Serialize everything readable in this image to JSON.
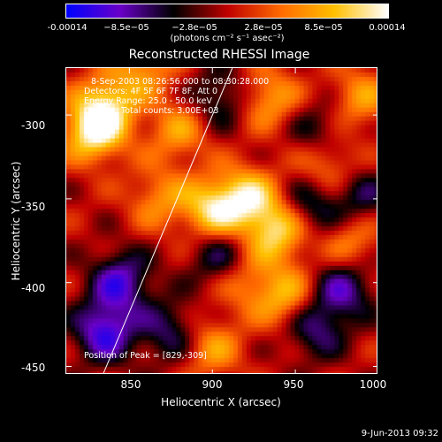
{
  "chart_data": {
    "type": "heatmap",
    "title": "Reconstructed RHESSI Image",
    "xlabel": "Heliocentric X (arcsec)",
    "ylabel": "Heliocentric Y (arcsec)",
    "xlim": [
      812,
      1000
    ],
    "ylim": [
      -455,
      -272
    ],
    "x_ticks": [
      "850",
      "900",
      "950",
      "1000"
    ],
    "y_ticks": [
      "-300",
      "-350",
      "-400",
      "-450"
    ],
    "colorbar": {
      "min": -0.00014,
      "max": 0.00014,
      "tick_labels": [
        "-0.00014",
        "−8.5e−05",
        "−2.8e−05",
        "2.8e−05",
        "8.5e−05",
        "0.00014"
      ],
      "unit": "(photons cm⁻² s⁻¹ asec⁻²)",
      "colormap": [
        "#0000ff",
        "#6a00c8",
        "#000000",
        "#c00000",
        "#ff6a00",
        "#ffc000",
        "#ffffff"
      ]
    },
    "info_lines": [
      "8-Sep-2003 08:26:56.000 to 08:30:28.000",
      "Detectors: 4F 5F 6F 7F 8F, Att 0",
      "Energy Range: 25.0 - 50.0 keV",
      "Clean     Total counts: 3.00E+03"
    ],
    "peak_label": "Position of Peak = [829,-309]",
    "peak": [
      829,
      -309
    ],
    "limb_line": [
      [
        834,
        -455
      ],
      [
        912,
        -272
      ]
    ],
    "blobs": [
      {
        "x": 829,
        "y": -309,
        "v": 1.0
      },
      {
        "x": 838,
        "y": -292,
        "v": 0.6
      },
      {
        "x": 901,
        "y": -357,
        "v": 0.8
      },
      {
        "x": 922,
        "y": -350,
        "v": 0.75
      },
      {
        "x": 940,
        "y": -370,
        "v": 0.8
      },
      {
        "x": 935,
        "y": -290,
        "v": 0.55
      },
      {
        "x": 880,
        "y": -310,
        "v": 0.5
      },
      {
        "x": 970,
        "y": -330,
        "v": 0.5
      },
      {
        "x": 945,
        "y": -410,
        "v": 0.6
      },
      {
        "x": 990,
        "y": -290,
        "v": 0.5
      },
      {
        "x": 900,
        "y": -440,
        "v": 0.5
      },
      {
        "x": 868,
        "y": -350,
        "v": 0.45
      },
      {
        "x": 985,
        "y": -375,
        "v": 0.45
      },
      {
        "x": 920,
        "y": -400,
        "v": 0.4
      },
      {
        "x": 860,
        "y": -270,
        "v": 0.5
      },
      {
        "x": 845,
        "y": -400,
        "v": -0.7
      },
      {
        "x": 835,
        "y": -430,
        "v": -0.8
      },
      {
        "x": 980,
        "y": -405,
        "v": -0.6
      },
      {
        "x": 962,
        "y": -428,
        "v": -0.55
      },
      {
        "x": 905,
        "y": -385,
        "v": -0.5
      },
      {
        "x": 960,
        "y": -355,
        "v": -0.5
      },
      {
        "x": 905,
        "y": -290,
        "v": -0.45
      },
      {
        "x": 990,
        "y": -350,
        "v": -0.45
      },
      {
        "x": 875,
        "y": -430,
        "v": -0.5
      },
      {
        "x": 965,
        "y": -310,
        "v": -0.4
      }
    ]
  },
  "footer": {
    "date": "9-Jun-2013 09:32"
  }
}
